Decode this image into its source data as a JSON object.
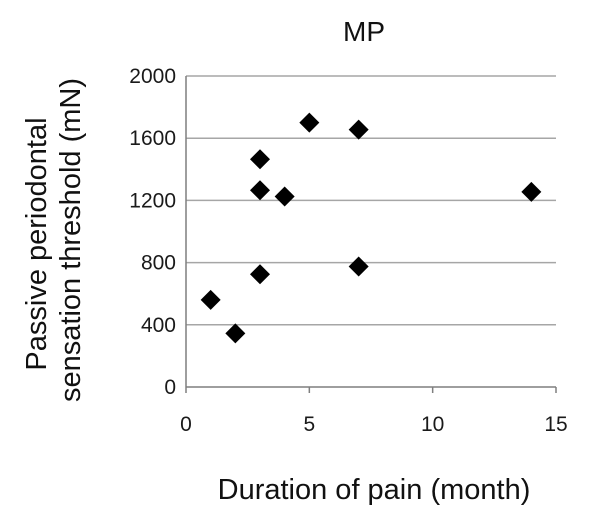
{
  "chart_data": {
    "type": "scatter",
    "title": "MP",
    "xlabel": "Duration of pain (month)",
    "ylabel_lines": [
      "Passive periodontal",
      "sensation threshold (mN)"
    ],
    "xlim": [
      0,
      15
    ],
    "ylim": [
      0,
      2000
    ],
    "x_ticks": [
      "0",
      "5",
      "10",
      "15"
    ],
    "y_ticks": [
      "0",
      "400",
      "800",
      "1200",
      "1600",
      "2000"
    ],
    "grid": "horizontal",
    "legend": "none",
    "marker": "diamond",
    "marker_color": "#000000",
    "gridline_color": "#a6a6a6",
    "points": [
      {
        "x": 1,
        "y": 560
      },
      {
        "x": 2,
        "y": 345
      },
      {
        "x": 3,
        "y": 1465
      },
      {
        "x": 3,
        "y": 1265
      },
      {
        "x": 3,
        "y": 725
      },
      {
        "x": 4,
        "y": 1225
      },
      {
        "x": 5,
        "y": 1700
      },
      {
        "x": 7,
        "y": 1655
      },
      {
        "x": 7,
        "y": 775
      },
      {
        "x": 14,
        "y": 1255
      }
    ]
  }
}
